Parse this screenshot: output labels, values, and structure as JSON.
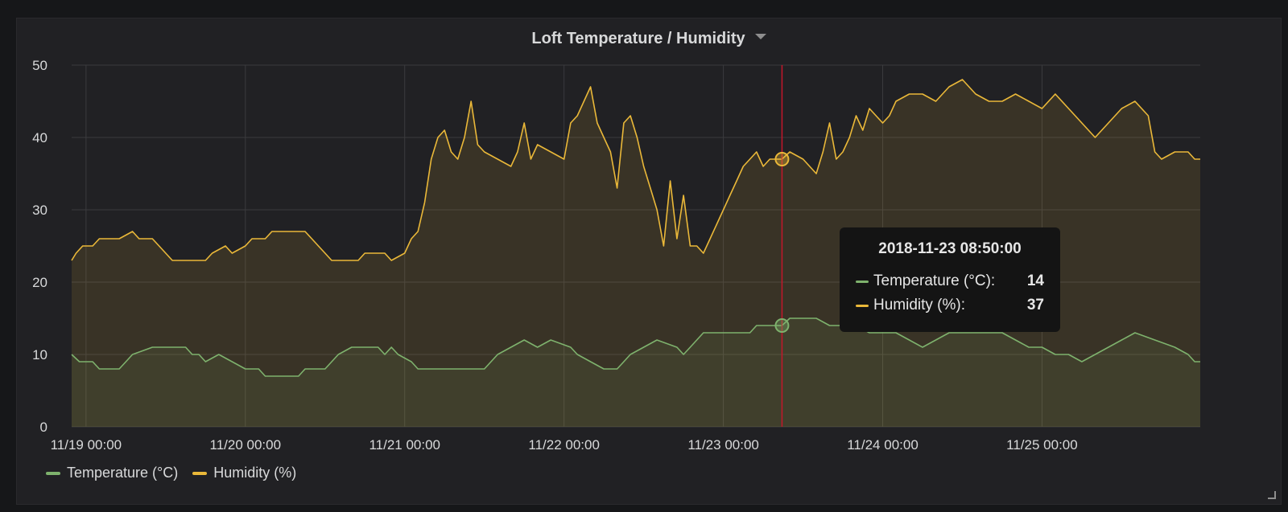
{
  "panel": {
    "title": "Loft Temperature / Humidity"
  },
  "chart_data": {
    "type": "area",
    "title": "Loft Temperature / Humidity",
    "ylim": [
      0,
      50
    ],
    "y_ticks": [
      "0",
      "10",
      "20",
      "30",
      "40",
      "50"
    ],
    "x_ticks": [
      "11/19 00:00",
      "11/20 00:00",
      "11/21 00:00",
      "11/22 00:00",
      "11/23 00:00",
      "11/24 00:00",
      "11/25 00:00"
    ],
    "xlim": [
      "2018-11-18 21:50",
      "2018-11-25 23:50"
    ],
    "grid": true,
    "legend_position": "bottom-left",
    "series": [
      {
        "name": "Temperature (°C)",
        "color": "#7eb26d",
        "points": [
          [
            "11/18 21:50",
            10
          ],
          [
            "11/18 23:00",
            9
          ],
          [
            "11/19 01:00",
            9
          ],
          [
            "11/19 02:00",
            8
          ],
          [
            "11/19 05:00",
            8
          ],
          [
            "11/19 06:00",
            9
          ],
          [
            "11/19 07:00",
            10
          ],
          [
            "11/19 10:00",
            11
          ],
          [
            "11/19 15:00",
            11
          ],
          [
            "11/19 16:00",
            10
          ],
          [
            "11/19 17:00",
            10
          ],
          [
            "11/19 18:00",
            9
          ],
          [
            "11/19 20:00",
            10
          ],
          [
            "11/19 22:00",
            9
          ],
          [
            "11/20 00:00",
            8
          ],
          [
            "11/20 02:00",
            8
          ],
          [
            "11/20 03:00",
            7
          ],
          [
            "11/20 08:00",
            7
          ],
          [
            "11/20 09:00",
            8
          ],
          [
            "11/20 12:00",
            8
          ],
          [
            "11/20 14:00",
            10
          ],
          [
            "11/20 16:00",
            11
          ],
          [
            "11/20 20:00",
            11
          ],
          [
            "11/20 21:00",
            10
          ],
          [
            "11/20 22:00",
            11
          ],
          [
            "11/20 23:00",
            10
          ],
          [
            "11/21 01:00",
            9
          ],
          [
            "11/21 02:00",
            8
          ],
          [
            "11/21 12:00",
            8
          ],
          [
            "11/21 14:00",
            10
          ],
          [
            "11/21 16:00",
            11
          ],
          [
            "11/21 18:00",
            12
          ],
          [
            "11/21 20:00",
            11
          ],
          [
            "11/21 22:00",
            12
          ],
          [
            "11/22 01:00",
            11
          ],
          [
            "11/22 02:00",
            10
          ],
          [
            "11/22 04:00",
            9
          ],
          [
            "11/22 06:00",
            8
          ],
          [
            "11/22 08:00",
            8
          ],
          [
            "11/22 09:00",
            9
          ],
          [
            "11/22 10:00",
            10
          ],
          [
            "11/22 12:00",
            11
          ],
          [
            "11/22 14:00",
            12
          ],
          [
            "11/22 17:00",
            11
          ],
          [
            "11/22 18:00",
            10
          ],
          [
            "11/22 19:00",
            11
          ],
          [
            "11/22 20:00",
            12
          ],
          [
            "11/22 21:00",
            13
          ],
          [
            "11/23 04:00",
            13
          ],
          [
            "11/23 05:00",
            14
          ],
          [
            "11/23 08:50",
            14
          ],
          [
            "11/23 10:00",
            15
          ],
          [
            "11/23 14:00",
            15
          ],
          [
            "11/23 16:00",
            14
          ],
          [
            "11/23 20:00",
            14
          ],
          [
            "11/23 22:00",
            13
          ],
          [
            "11/24 02:00",
            13
          ],
          [
            "11/24 04:00",
            12
          ],
          [
            "11/24 06:00",
            11
          ],
          [
            "11/24 08:00",
            12
          ],
          [
            "11/24 10:00",
            13
          ],
          [
            "11/24 18:00",
            13
          ],
          [
            "11/24 20:00",
            12
          ],
          [
            "11/24 22:00",
            11
          ],
          [
            "11/25 00:00",
            11
          ],
          [
            "11/25 02:00",
            10
          ],
          [
            "11/25 04:00",
            10
          ],
          [
            "11/25 06:00",
            9
          ],
          [
            "11/25 08:00",
            10
          ],
          [
            "11/25 10:00",
            11
          ],
          [
            "11/25 12:00",
            12
          ],
          [
            "11/25 14:00",
            13
          ],
          [
            "11/25 17:00",
            12
          ],
          [
            "11/25 20:00",
            11
          ],
          [
            "11/25 22:00",
            10
          ],
          [
            "11/25 23:00",
            9
          ],
          [
            "11/25 23:50",
            9
          ]
        ]
      },
      {
        "name": "Humidity (%)",
        "color": "#eab839",
        "points": [
          [
            "11/18 21:50",
            23
          ],
          [
            "11/18 22:30",
            24
          ],
          [
            "11/18 23:30",
            25
          ],
          [
            "11/19 01:00",
            25
          ],
          [
            "11/19 02:00",
            26
          ],
          [
            "11/19 05:00",
            26
          ],
          [
            "11/19 07:00",
            27
          ],
          [
            "11/19 08:00",
            26
          ],
          [
            "11/19 10:00",
            26
          ],
          [
            "11/19 11:00",
            25
          ],
          [
            "11/19 13:00",
            23
          ],
          [
            "11/19 18:00",
            23
          ],
          [
            "11/19 19:00",
            24
          ],
          [
            "11/19 21:00",
            25
          ],
          [
            "11/19 22:00",
            24
          ],
          [
            "11/20 00:00",
            25
          ],
          [
            "11/20 01:00",
            26
          ],
          [
            "11/20 03:00",
            26
          ],
          [
            "11/20 04:00",
            27
          ],
          [
            "11/20 09:00",
            27
          ],
          [
            "11/20 10:00",
            26
          ],
          [
            "11/20 11:00",
            25
          ],
          [
            "11/20 12:00",
            24
          ],
          [
            "11/20 13:00",
            23
          ],
          [
            "11/20 17:00",
            23
          ],
          [
            "11/20 18:00",
            24
          ],
          [
            "11/20 21:00",
            24
          ],
          [
            "11/20 22:00",
            23
          ],
          [
            "11/21 00:00",
            24
          ],
          [
            "11/21 01:00",
            26
          ],
          [
            "11/21 02:00",
            27
          ],
          [
            "11/21 03:00",
            31
          ],
          [
            "11/21 04:00",
            37
          ],
          [
            "11/21 05:00",
            40
          ],
          [
            "11/21 06:00",
            41
          ],
          [
            "11/21 07:00",
            38
          ],
          [
            "11/21 08:00",
            37
          ],
          [
            "11/21 09:00",
            40
          ],
          [
            "11/21 10:00",
            45
          ],
          [
            "11/21 11:00",
            39
          ],
          [
            "11/21 12:00",
            38
          ],
          [
            "11/21 14:00",
            37
          ],
          [
            "11/21 16:00",
            36
          ],
          [
            "11/21 17:00",
            38
          ],
          [
            "11/21 18:00",
            42
          ],
          [
            "11/21 19:00",
            37
          ],
          [
            "11/21 20:00",
            39
          ],
          [
            "11/21 22:00",
            38
          ],
          [
            "11/22 00:00",
            37
          ],
          [
            "11/22 01:00",
            42
          ],
          [
            "11/22 02:00",
            43
          ],
          [
            "11/22 03:00",
            45
          ],
          [
            "11/22 04:00",
            47
          ],
          [
            "11/22 05:00",
            42
          ],
          [
            "11/22 06:00",
            40
          ],
          [
            "11/22 07:00",
            38
          ],
          [
            "11/22 08:00",
            33
          ],
          [
            "11/22 09:00",
            42
          ],
          [
            "11/22 10:00",
            43
          ],
          [
            "11/22 11:00",
            40
          ],
          [
            "11/22 12:00",
            36
          ],
          [
            "11/22 13:00",
            33
          ],
          [
            "11/22 14:00",
            30
          ],
          [
            "11/22 15:00",
            25
          ],
          [
            "11/22 16:00",
            34
          ],
          [
            "11/22 17:00",
            26
          ],
          [
            "11/22 18:00",
            32
          ],
          [
            "11/22 19:00",
            25
          ],
          [
            "11/22 20:00",
            25
          ],
          [
            "11/22 21:00",
            24
          ],
          [
            "11/22 22:00",
            26
          ],
          [
            "11/23 00:00",
            30
          ],
          [
            "11/23 01:00",
            32
          ],
          [
            "11/23 02:00",
            34
          ],
          [
            "11/23 03:00",
            36
          ],
          [
            "11/23 04:00",
            37
          ],
          [
            "11/23 05:00",
            38
          ],
          [
            "11/23 06:00",
            36
          ],
          [
            "11/23 07:00",
            37
          ],
          [
            "11/23 08:50",
            37
          ],
          [
            "11/23 10:00",
            38
          ],
          [
            "11/23 12:00",
            37
          ],
          [
            "11/23 13:00",
            36
          ],
          [
            "11/23 14:00",
            35
          ],
          [
            "11/23 15:00",
            38
          ],
          [
            "11/23 16:00",
            42
          ],
          [
            "11/23 17:00",
            37
          ],
          [
            "11/23 18:00",
            38
          ],
          [
            "11/23 19:00",
            40
          ],
          [
            "11/23 20:00",
            43
          ],
          [
            "11/23 21:00",
            41
          ],
          [
            "11/23 22:00",
            44
          ],
          [
            "11/24 00:00",
            42
          ],
          [
            "11/24 01:00",
            43
          ],
          [
            "11/24 02:00",
            45
          ],
          [
            "11/24 04:00",
            46
          ],
          [
            "11/24 06:00",
            46
          ],
          [
            "11/24 08:00",
            45
          ],
          [
            "11/24 10:00",
            47
          ],
          [
            "11/24 12:00",
            48
          ],
          [
            "11/24 14:00",
            46
          ],
          [
            "11/24 16:00",
            45
          ],
          [
            "11/24 18:00",
            45
          ],
          [
            "11/24 20:00",
            46
          ],
          [
            "11/24 22:00",
            45
          ],
          [
            "11/25 00:00",
            44
          ],
          [
            "11/25 02:00",
            46
          ],
          [
            "11/25 04:00",
            44
          ],
          [
            "11/25 06:00",
            42
          ],
          [
            "11/25 08:00",
            40
          ],
          [
            "11/25 10:00",
            42
          ],
          [
            "11/25 12:00",
            44
          ],
          [
            "11/25 14:00",
            45
          ],
          [
            "11/25 16:00",
            43
          ],
          [
            "11/25 17:00",
            38
          ],
          [
            "11/25 18:00",
            37
          ],
          [
            "11/25 20:00",
            38
          ],
          [
            "11/25 22:00",
            38
          ],
          [
            "11/25 23:00",
            37
          ],
          [
            "11/25 23:50",
            37
          ]
        ]
      }
    ],
    "cursor": {
      "time": "11/23 08:50",
      "color": "#c4162a"
    }
  },
  "legend": {
    "items": [
      {
        "label": "Temperature (°C)",
        "color": "#7eb26d"
      },
      {
        "label": "Humidity (%)",
        "color": "#eab839"
      }
    ]
  },
  "tooltip": {
    "time": "2018-11-23 08:50:00",
    "rows": [
      {
        "label": "Temperature (°C):",
        "value": "14",
        "color": "#7eb26d"
      },
      {
        "label": "Humidity (%):",
        "value": "37",
        "color": "#eab839"
      }
    ]
  }
}
